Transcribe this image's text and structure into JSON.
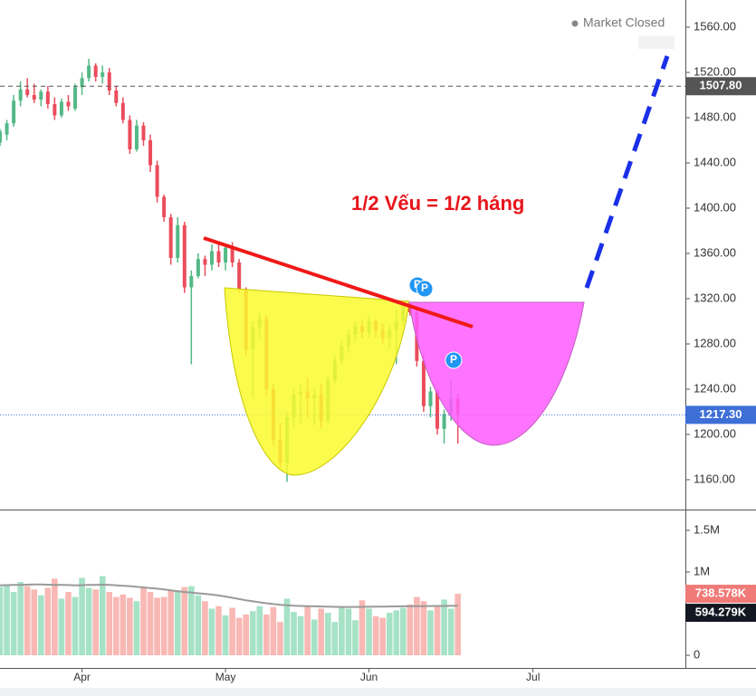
{
  "status": "Market Closed",
  "chart_data": [
    {
      "type": "ohlc",
      "annotation": "1/2 Vếu = 1/2 háng",
      "badges": [
        "P",
        "P",
        "P"
      ],
      "up_color": "#53b987",
      "down_color": "#eb4d5c",
      "xlim": [
        0,
        100.3
      ],
      "xticks": [
        {
          "value": 12,
          "label": "Apr"
        },
        {
          "value": 33,
          "label": "May"
        },
        {
          "value": 54,
          "label": "Jun"
        },
        {
          "value": 78,
          "label": "Jul"
        }
      ],
      "ylim": [
        1133.6,
        1584
      ],
      "yticks": [
        {
          "value": 1160,
          "label": "1160.00"
        },
        {
          "value": 1200,
          "label": "1200.00"
        },
        {
          "value": 1240,
          "label": "1240.00"
        },
        {
          "value": 1280,
          "label": "1280.00"
        },
        {
          "value": 1320,
          "label": "1320.00"
        },
        {
          "value": 1360,
          "label": "1360.00"
        },
        {
          "value": 1400,
          "label": "1400.00"
        },
        {
          "value": 1440,
          "label": "1440.00"
        },
        {
          "value": 1480,
          "label": "1480.00"
        },
        {
          "value": 1520,
          "label": "1520.00"
        },
        {
          "value": 1560,
          "label": "1560.00"
        }
      ],
      "price_lines": [
        {
          "value": 1507.8,
          "label": "1507.80",
          "color": "#555555",
          "style": "dashed"
        },
        {
          "value": 1217.3,
          "label": "1217.30",
          "color": "#3d6fd6",
          "style": "dotted"
        }
      ],
      "open": [
        1458,
        1465,
        1475,
        1495,
        1505,
        1500,
        1496,
        1503,
        1492,
        1482,
        1494,
        1488,
        1507,
        1515,
        1526,
        1516,
        1520,
        1504,
        1493,
        1478,
        1452,
        1473,
        1460,
        1438,
        1410,
        1392,
        1356,
        1385,
        1330,
        1340,
        1355,
        1350,
        1362,
        1352,
        1365,
        1352,
        1328,
        1275,
        1295,
        1302,
        1240,
        1195,
        1175,
        1215,
        1235,
        1238,
        1232,
        1235,
        1212,
        1248,
        1265,
        1278,
        1288,
        1296,
        1290,
        1300,
        1292,
        1285,
        1292,
        1300,
        1315,
        1308,
        1265,
        1225,
        1238,
        1205,
        1218,
        1232
      ],
      "high": [
        1470,
        1478,
        1500,
        1512,
        1515,
        1510,
        1505,
        1508,
        1498,
        1497,
        1500,
        1510,
        1520,
        1532,
        1528,
        1526,
        1524,
        1508,
        1498,
        1482,
        1478,
        1476,
        1465,
        1442,
        1412,
        1395,
        1392,
        1388,
        1345,
        1360,
        1358,
        1368,
        1370,
        1368,
        1370,
        1355,
        1330,
        1300,
        1308,
        1305,
        1245,
        1210,
        1220,
        1240,
        1245,
        1250,
        1240,
        1245,
        1252,
        1270,
        1282,
        1292,
        1300,
        1302,
        1305,
        1302,
        1298,
        1296,
        1310,
        1318,
        1316,
        1312,
        1270,
        1242,
        1240,
        1222,
        1248,
        1236
      ],
      "low": [
        1455,
        1460,
        1472,
        1490,
        1498,
        1493,
        1490,
        1488,
        1478,
        1480,
        1486,
        1486,
        1500,
        1512,
        1512,
        1510,
        1500,
        1490,
        1475,
        1448,
        1450,
        1455,
        1432,
        1405,
        1388,
        1350,
        1352,
        1325,
        1262,
        1338,
        1340,
        1345,
        1348,
        1345,
        1348,
        1325,
        1270,
        1232,
        1285,
        1235,
        1190,
        1170,
        1158,
        1205,
        1210,
        1215,
        1208,
        1205,
        1210,
        1245,
        1262,
        1272,
        1282,
        1285,
        1286,
        1286,
        1280,
        1275,
        1262,
        1296,
        1305,
        1260,
        1220,
        1215,
        1200,
        1192,
        1212,
        1192
      ],
      "close": [
        1468,
        1475,
        1495,
        1505,
        1500,
        1496,
        1503,
        1492,
        1482,
        1494,
        1490,
        1507,
        1515,
        1526,
        1516,
        1520,
        1504,
        1493,
        1478,
        1452,
        1473,
        1460,
        1438,
        1410,
        1392,
        1356,
        1385,
        1330,
        1340,
        1355,
        1350,
        1362,
        1352,
        1365,
        1352,
        1328,
        1275,
        1295,
        1302,
        1240,
        1195,
        1175,
        1215,
        1235,
        1238,
        1232,
        1235,
        1212,
        1248,
        1265,
        1278,
        1288,
        1296,
        1290,
        1300,
        1292,
        1285,
        1292,
        1300,
        1315,
        1308,
        1265,
        1225,
        1238,
        1205,
        1218,
        1232,
        1217.3
      ]
    },
    {
      "type": "volume",
      "up_color": "#a6e2c6",
      "down_color": "#f8b8b4",
      "ma_color": "#9a9a9a",
      "ylim": [
        -152000,
        1728000
      ],
      "yticks": [
        0,
        {
          "value": 1000000,
          "label": "1M"
        },
        {
          "value": 1500000,
          "label": "1.5M"
        }
      ],
      "price_lines": [
        {
          "value": 738578,
          "label": "738.578K",
          "color": "#f07a78"
        },
        {
          "value": 594279,
          "label": "594.279K",
          "color": "#131722"
        }
      ],
      "values": [
        820000,
        850000,
        760000,
        880000,
        830000,
        790000,
        720000,
        810000,
        920000,
        680000,
        760000,
        700000,
        930000,
        810000,
        790000,
        950000,
        760000,
        700000,
        730000,
        690000,
        650000,
        810000,
        760000,
        690000,
        700000,
        780000,
        780000,
        820000,
        830000,
        720000,
        650000,
        560000,
        590000,
        480000,
        570000,
        450000,
        490000,
        530000,
        590000,
        490000,
        580000,
        400000,
        680000,
        520000,
        470000,
        580000,
        430000,
        560000,
        510000,
        400000,
        580000,
        560000,
        420000,
        660000,
        560000,
        470000,
        450000,
        510000,
        540000,
        570000,
        610000,
        700000,
        650000,
        540000,
        590000,
        670000,
        560000,
        738578
      ],
      "ma": [
        840000,
        842000,
        845000,
        846000,
        848000,
        850000,
        850000,
        848000,
        846000,
        845000,
        843000,
        840000,
        842000,
        845000,
        846000,
        848000,
        845000,
        840000,
        835000,
        830000,
        822000,
        815000,
        808000,
        800000,
        790000,
        780000,
        770000,
        760000,
        752000,
        745000,
        738000,
        728000,
        718000,
        705000,
        690000,
        675000,
        660000,
        648000,
        636000,
        625000,
        615000,
        607000,
        600000,
        596000,
        592000,
        590000,
        588000,
        586000,
        584000,
        582000,
        580000,
        580000,
        580000,
        582000,
        583000,
        584000,
        585000,
        586000,
        587000,
        588000,
        589000,
        590000,
        590000,
        591000,
        592000,
        592000,
        593000,
        594279
      ]
    }
  ]
}
